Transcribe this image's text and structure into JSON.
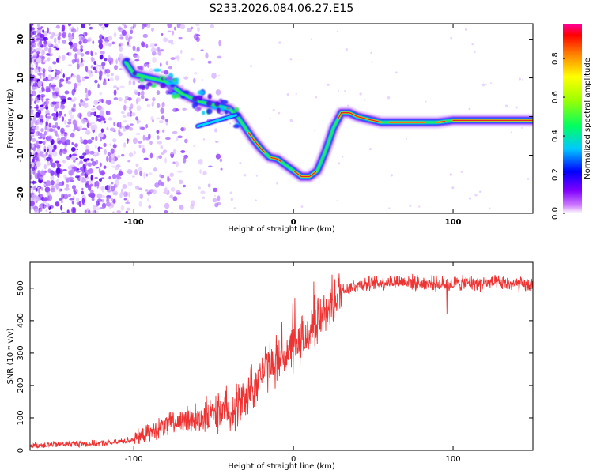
{
  "title": "S233.2026.084.06.27.E15",
  "chart_data": [
    {
      "type": "heatmap",
      "name": "spectrogram",
      "xlabel": "Height of straight line (km)",
      "ylabel": "Frequency (Hz)",
      "xlim": [
        -165,
        150
      ],
      "ylim": [
        -25,
        24
      ],
      "x_ticks": [
        "-100",
        "0",
        "100"
      ],
      "y_ticks": [
        "20",
        "10",
        "0",
        "-10",
        "-20"
      ],
      "ridge": {
        "x": [
          -105,
          -100,
          -95,
          -90,
          -85,
          -80,
          -75,
          -70,
          -65,
          -60,
          -55,
          -50,
          -45,
          -40,
          -35,
          -30,
          -25,
          -20,
          -15,
          -10,
          -5,
          0,
          5,
          10,
          15,
          20,
          25,
          30,
          35,
          40,
          45,
          50,
          55,
          60,
          70,
          80,
          90,
          100,
          110,
          120,
          130,
          140,
          150
        ],
        "y": [
          14,
          11,
          10.5,
          10,
          9.5,
          9,
          7.5,
          6,
          5,
          4,
          3.5,
          3,
          2.5,
          2,
          0,
          -3,
          -6,
          -8.5,
          -10.5,
          -11,
          -12.5,
          -14,
          -15.5,
          -15.5,
          -14,
          -9,
          -3,
          1,
          1,
          0,
          -0.5,
          -1,
          -1.5,
          -1.5,
          -1.5,
          -1.5,
          -1.5,
          -1,
          -1,
          -1,
          -1,
          -1,
          -1
        ]
      },
      "colorbar": {
        "label": "Normalized spectral amplitude",
        "ticks": [
          "0.0",
          "0.2",
          "0.4",
          "0.6",
          "0.8"
        ],
        "range": [
          0,
          0.98
        ]
      }
    },
    {
      "type": "line",
      "name": "snr",
      "xlabel": "Height of straight line (km)",
      "ylabel": "SNR (10 * v/v)",
      "xlim": [
        -165,
        150
      ],
      "ylim": [
        0,
        580
      ],
      "x_ticks": [
        "-100",
        "0",
        "100"
      ],
      "y_ticks": [
        "0",
        "100",
        "200",
        "300",
        "400",
        "500"
      ],
      "color": "#ee3333",
      "series": [
        {
          "name": "SNR",
          "x": [
            -165,
            -150,
            -140,
            -130,
            -120,
            -110,
            -100,
            -90,
            -80,
            -70,
            -60,
            -50,
            -40,
            -35,
            -30,
            -25,
            -20,
            -15,
            -10,
            -5,
            0,
            5,
            10,
            15,
            20,
            25,
            30,
            40,
            50,
            60,
            70,
            80,
            90,
            95,
            100,
            110,
            120,
            130,
            140,
            150
          ],
          "y": [
            15,
            18,
            20,
            20,
            22,
            25,
            35,
            55,
            75,
            90,
            100,
            110,
            125,
            140,
            170,
            200,
            240,
            265,
            280,
            295,
            310,
            330,
            365,
            395,
            425,
            460,
            495,
            510,
            515,
            520,
            520,
            515,
            515,
            510,
            515,
            515,
            515,
            515,
            512,
            510
          ]
        }
      ]
    }
  ]
}
